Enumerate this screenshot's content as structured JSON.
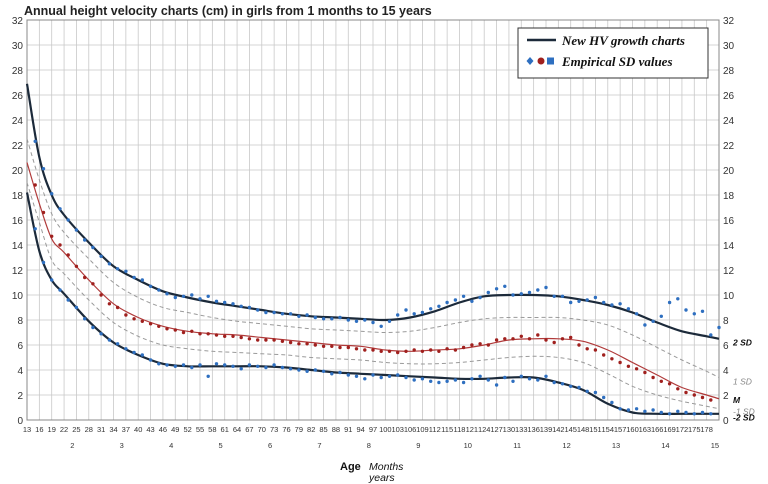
{
  "chart_data": {
    "type": "line",
    "title": "Annual height velocity charts (cm) in girls from 1 months to 15 years",
    "xlabel": "Age",
    "xlabel_units": "Months",
    "xlabel_units2": "years",
    "ylim": [
      0,
      32
    ],
    "y_ticks": [
      0,
      2,
      4,
      6,
      8,
      10,
      12,
      14,
      16,
      18,
      20,
      22,
      24,
      26,
      28,
      30,
      32
    ],
    "x_range_months": [
      13,
      181
    ],
    "x_month_ticks": [
      13,
      16,
      19,
      22,
      25,
      28,
      31,
      34,
      37,
      40,
      43,
      46,
      49,
      52,
      55,
      58,
      61,
      64,
      67,
      70,
      73,
      76,
      79,
      82,
      85,
      88,
      91,
      94,
      97,
      100,
      103,
      106,
      109,
      112,
      115,
      118,
      121,
      124,
      127,
      130,
      133,
      136,
      139,
      142,
      145,
      148,
      151,
      154,
      157,
      160,
      163,
      166,
      169,
      172,
      175,
      178
    ],
    "x_year_ticks": [
      {
        "label": "2",
        "month": 24
      },
      {
        "label": "3",
        "month": 36
      },
      {
        "label": "4",
        "month": 48
      },
      {
        "label": "5",
        "month": 60
      },
      {
        "label": "6",
        "month": 72
      },
      {
        "label": "7",
        "month": 84
      },
      {
        "label": "8",
        "month": 96
      },
      {
        "label": "9",
        "month": 108
      },
      {
        "label": "10",
        "month": 120
      },
      {
        "label": "11",
        "month": 132
      },
      {
        "label": "12",
        "month": 144
      },
      {
        "label": "13",
        "month": 156
      },
      {
        "label": "14",
        "month": 168
      },
      {
        "label": "15",
        "month": 180
      }
    ],
    "grid": true,
    "legend_position": "top-right",
    "legend": {
      "line_label": "New HV growth charts",
      "marker_label": "Empirical SD values"
    },
    "colors": {
      "sd_outer": "#1c2a3a",
      "sd_outer_markers": "#2e6fc0",
      "median": "#b03a3a",
      "median_markers": "#a0201e",
      "sd_inner": "#9a9a9a",
      "grid": "#c8c8c8"
    },
    "series": [
      {
        "name": "2 SD",
        "style": "thick",
        "x": [
          13,
          16,
          19,
          22,
          28,
          34,
          40,
          46,
          52,
          58,
          64,
          70,
          76,
          82,
          88,
          94,
          100,
          106,
          112,
          118,
          124,
          130,
          136,
          142,
          148,
          154,
          160,
          166,
          172,
          178,
          181
        ],
        "y": [
          26.9,
          21.0,
          18.0,
          16.4,
          14.2,
          12.3,
          11.2,
          10.3,
          9.8,
          9.4,
          9.1,
          8.8,
          8.5,
          8.3,
          8.2,
          8.1,
          8.0,
          8.2,
          8.7,
          9.4,
          9.9,
          10.0,
          10.0,
          9.9,
          9.6,
          9.2,
          8.6,
          7.8,
          7.1,
          6.7,
          6.5
        ]
      },
      {
        "name": "1 SD",
        "style": "dashed",
        "x": [
          13,
          16,
          19,
          22,
          28,
          34,
          40,
          46,
          52,
          58,
          64,
          70,
          76,
          82,
          88,
          94,
          100,
          106,
          112,
          118,
          124,
          130,
          136,
          142,
          148,
          154,
          160,
          166,
          172,
          178,
          181
        ],
        "y": [
          22.5,
          19.2,
          16.5,
          15.0,
          12.9,
          11.0,
          9.8,
          9.0,
          8.6,
          8.2,
          7.9,
          7.7,
          7.5,
          7.3,
          7.2,
          7.1,
          7.0,
          7.1,
          7.4,
          7.8,
          8.1,
          8.2,
          8.2,
          8.2,
          8.0,
          7.6,
          6.8,
          5.8,
          4.8,
          3.9,
          3.4
        ]
      },
      {
        "name": "M",
        "style": "median",
        "x": [
          13,
          16,
          19,
          22,
          28,
          34,
          40,
          46,
          52,
          58,
          64,
          70,
          76,
          82,
          88,
          94,
          100,
          106,
          112,
          118,
          124,
          130,
          136,
          142,
          148,
          154,
          160,
          166,
          172,
          178,
          181
        ],
        "y": [
          20.6,
          17.3,
          14.5,
          13.4,
          11.2,
          9.3,
          8.2,
          7.5,
          7.1,
          6.9,
          6.8,
          6.6,
          6.4,
          6.2,
          6.0,
          5.9,
          5.6,
          5.5,
          5.6,
          5.7,
          6.0,
          6.4,
          6.5,
          6.5,
          6.3,
          5.6,
          4.6,
          3.6,
          2.6,
          2.0,
          1.7
        ]
      },
      {
        "name": "-1 SD",
        "style": "dashed",
        "x": [
          13,
          16,
          19,
          22,
          28,
          34,
          40,
          46,
          52,
          58,
          64,
          70,
          76,
          82,
          88,
          94,
          100,
          106,
          112,
          118,
          124,
          130,
          136,
          142,
          148,
          154,
          160,
          166,
          172,
          178,
          181
        ],
        "y": [
          19.0,
          15.8,
          12.8,
          11.7,
          9.6,
          7.8,
          6.7,
          6.0,
          5.7,
          5.5,
          5.4,
          5.3,
          5.2,
          5.0,
          4.9,
          4.8,
          4.6,
          4.5,
          4.5,
          4.6,
          4.8,
          5.0,
          5.1,
          5.0,
          4.6,
          3.7,
          2.7,
          2.0,
          1.5,
          1.1,
          0.9
        ]
      },
      {
        "name": "-2 SD",
        "style": "thick",
        "x": [
          13,
          16,
          19,
          22,
          28,
          34,
          40,
          46,
          52,
          58,
          64,
          70,
          76,
          82,
          88,
          94,
          100,
          106,
          112,
          118,
          124,
          130,
          136,
          142,
          148,
          154,
          160,
          166,
          172,
          178,
          181
        ],
        "y": [
          18.2,
          13.5,
          11.2,
          10.1,
          7.9,
          6.2,
          5.2,
          4.5,
          4.3,
          4.3,
          4.3,
          4.3,
          4.2,
          4.0,
          3.8,
          3.7,
          3.6,
          3.5,
          3.4,
          3.3,
          3.3,
          3.4,
          3.4,
          3.0,
          2.4,
          1.3,
          0.6,
          0.5,
          0.5,
          0.5,
          0.5
        ]
      }
    ],
    "markers": [
      {
        "series": "2 SD",
        "style": "blue",
        "x": [
          15,
          17,
          19,
          21,
          23,
          25,
          27,
          29,
          31,
          33,
          35,
          37,
          39,
          41,
          43,
          45,
          47,
          49,
          51,
          53,
          55,
          57,
          59,
          61,
          63,
          65,
          67,
          69,
          71,
          73,
          75,
          77,
          79,
          81,
          83,
          85,
          87,
          89,
          91,
          93,
          95,
          97,
          99,
          101,
          103,
          105,
          107,
          109,
          111,
          113,
          115,
          117,
          119,
          121,
          123,
          125,
          127,
          129,
          131,
          133,
          135,
          137,
          139,
          141,
          143,
          145,
          147,
          149,
          151,
          153,
          155,
          157,
          159,
          161,
          163,
          165,
          167,
          169,
          171,
          173,
          175,
          177,
          179,
          181
        ],
        "y": [
          22.3,
          20.1,
          18.1,
          16.9,
          16.0,
          15.2,
          14.4,
          13.8,
          13.1,
          12.5,
          12.1,
          11.9,
          11.4,
          11.2,
          10.7,
          10.4,
          10.1,
          9.8,
          9.9,
          10.0,
          9.7,
          9.9,
          9.5,
          9.4,
          9.3,
          9.1,
          9.0,
          8.8,
          8.6,
          8.6,
          8.5,
          8.5,
          8.3,
          8.4,
          8.2,
          8.1,
          8.1,
          8.2,
          8.0,
          7.9,
          8.0,
          7.8,
          7.5,
          7.9,
          8.4,
          8.8,
          8.5,
          8.6,
          8.9,
          9.1,
          9.4,
          9.6,
          9.9,
          9.5,
          9.8,
          10.2,
          10.5,
          10.7,
          10.0,
          10.1,
          10.2,
          10.4,
          10.6,
          9.9,
          9.9,
          9.4,
          9.5,
          9.6,
          9.8,
          9.4,
          9.2,
          9.3,
          8.9,
          8.5,
          7.6,
          7.9,
          8.3,
          9.4,
          9.7,
          8.8,
          8.5,
          8.7,
          6.8,
          7.4
        ]
      },
      {
        "series": "M",
        "style": "red",
        "x": [
          15,
          17,
          19,
          21,
          23,
          25,
          27,
          29,
          31,
          33,
          35,
          37,
          39,
          41,
          43,
          45,
          47,
          49,
          51,
          53,
          55,
          57,
          59,
          61,
          63,
          65,
          67,
          69,
          71,
          73,
          75,
          77,
          79,
          81,
          83,
          85,
          87,
          89,
          91,
          93,
          95,
          97,
          99,
          101,
          103,
          105,
          107,
          109,
          111,
          113,
          115,
          117,
          119,
          121,
          123,
          125,
          127,
          129,
          131,
          133,
          135,
          137,
          139,
          141,
          143,
          145,
          147,
          149,
          151,
          153,
          155,
          157,
          159,
          161,
          163,
          165,
          167,
          169,
          171,
          173,
          175,
          177,
          179
        ],
        "y": [
          18.8,
          16.6,
          14.7,
          14.0,
          13.2,
          12.3,
          11.4,
          10.9,
          10.0,
          9.3,
          9.0,
          8.4,
          8.1,
          7.9,
          7.7,
          7.5,
          7.3,
          7.2,
          7.0,
          7.1,
          6.9,
          6.9,
          6.8,
          6.7,
          6.7,
          6.6,
          6.5,
          6.4,
          6.4,
          6.4,
          6.3,
          6.2,
          6.1,
          6.1,
          6.0,
          5.9,
          5.9,
          5.8,
          5.8,
          5.7,
          5.6,
          5.6,
          5.5,
          5.5,
          5.4,
          5.5,
          5.6,
          5.5,
          5.6,
          5.5,
          5.7,
          5.6,
          5.8,
          6.0,
          6.1,
          6.0,
          6.4,
          6.5,
          6.5,
          6.7,
          6.5,
          6.8,
          6.4,
          6.2,
          6.5,
          6.6,
          6.0,
          5.7,
          5.6,
          5.2,
          4.9,
          4.6,
          4.3,
          4.1,
          3.8,
          3.4,
          3.1,
          2.9,
          2.5,
          2.2,
          2.0,
          1.8,
          1.6
        ]
      },
      {
        "series": "-2 SD",
        "style": "blue",
        "x": [
          15,
          17,
          19,
          21,
          23,
          25,
          27,
          29,
          31,
          33,
          35,
          37,
          39,
          41,
          43,
          45,
          47,
          49,
          51,
          53,
          55,
          57,
          59,
          61,
          63,
          65,
          67,
          69,
          71,
          73,
          75,
          77,
          79,
          81,
          83,
          85,
          87,
          89,
          91,
          93,
          95,
          97,
          99,
          101,
          103,
          105,
          107,
          109,
          111,
          113,
          115,
          117,
          119,
          121,
          123,
          125,
          127,
          129,
          131,
          133,
          135,
          137,
          139,
          141,
          143,
          145,
          147,
          149,
          151,
          153,
          155,
          157,
          159,
          161,
          163,
          165,
          167,
          169,
          171,
          173,
          175,
          177,
          179
        ],
        "y": [
          15.3,
          12.6,
          11.2,
          10.4,
          9.6,
          9.0,
          8.1,
          7.4,
          6.9,
          6.4,
          6.1,
          5.7,
          5.4,
          5.2,
          4.8,
          4.5,
          4.4,
          4.3,
          4.4,
          4.2,
          4.4,
          3.5,
          4.5,
          4.4,
          4.3,
          4.1,
          4.4,
          4.3,
          4.2,
          4.4,
          4.2,
          4.1,
          4.0,
          3.9,
          4.0,
          3.9,
          3.7,
          3.8,
          3.6,
          3.5,
          3.3,
          3.6,
          3.4,
          3.5,
          3.6,
          3.4,
          3.2,
          3.3,
          3.1,
          3.0,
          3.1,
          3.2,
          3.0,
          3.3,
          3.5,
          3.2,
          2.8,
          3.4,
          3.1,
          3.5,
          3.3,
          3.2,
          3.5,
          3.0,
          2.9,
          2.7,
          2.6,
          2.3,
          2.2,
          1.8,
          1.4,
          0.9,
          0.8,
          0.9,
          0.7,
          0.8,
          0.6,
          0.5,
          0.7,
          0.6,
          0.5,
          0.6,
          0.5
        ]
      }
    ],
    "right_labels": [
      {
        "text": "2 SD",
        "y": 6.2,
        "style": "bold"
      },
      {
        "text": "1 SD",
        "y": 3.1,
        "style": "light"
      },
      {
        "text": "M",
        "y": 1.6,
        "style": "bold"
      },
      {
        "text": "-1 SD",
        "y": 0.7,
        "style": "light"
      },
      {
        "text": "-2 SD",
        "y": 0.2,
        "style": "bold"
      }
    ]
  }
}
